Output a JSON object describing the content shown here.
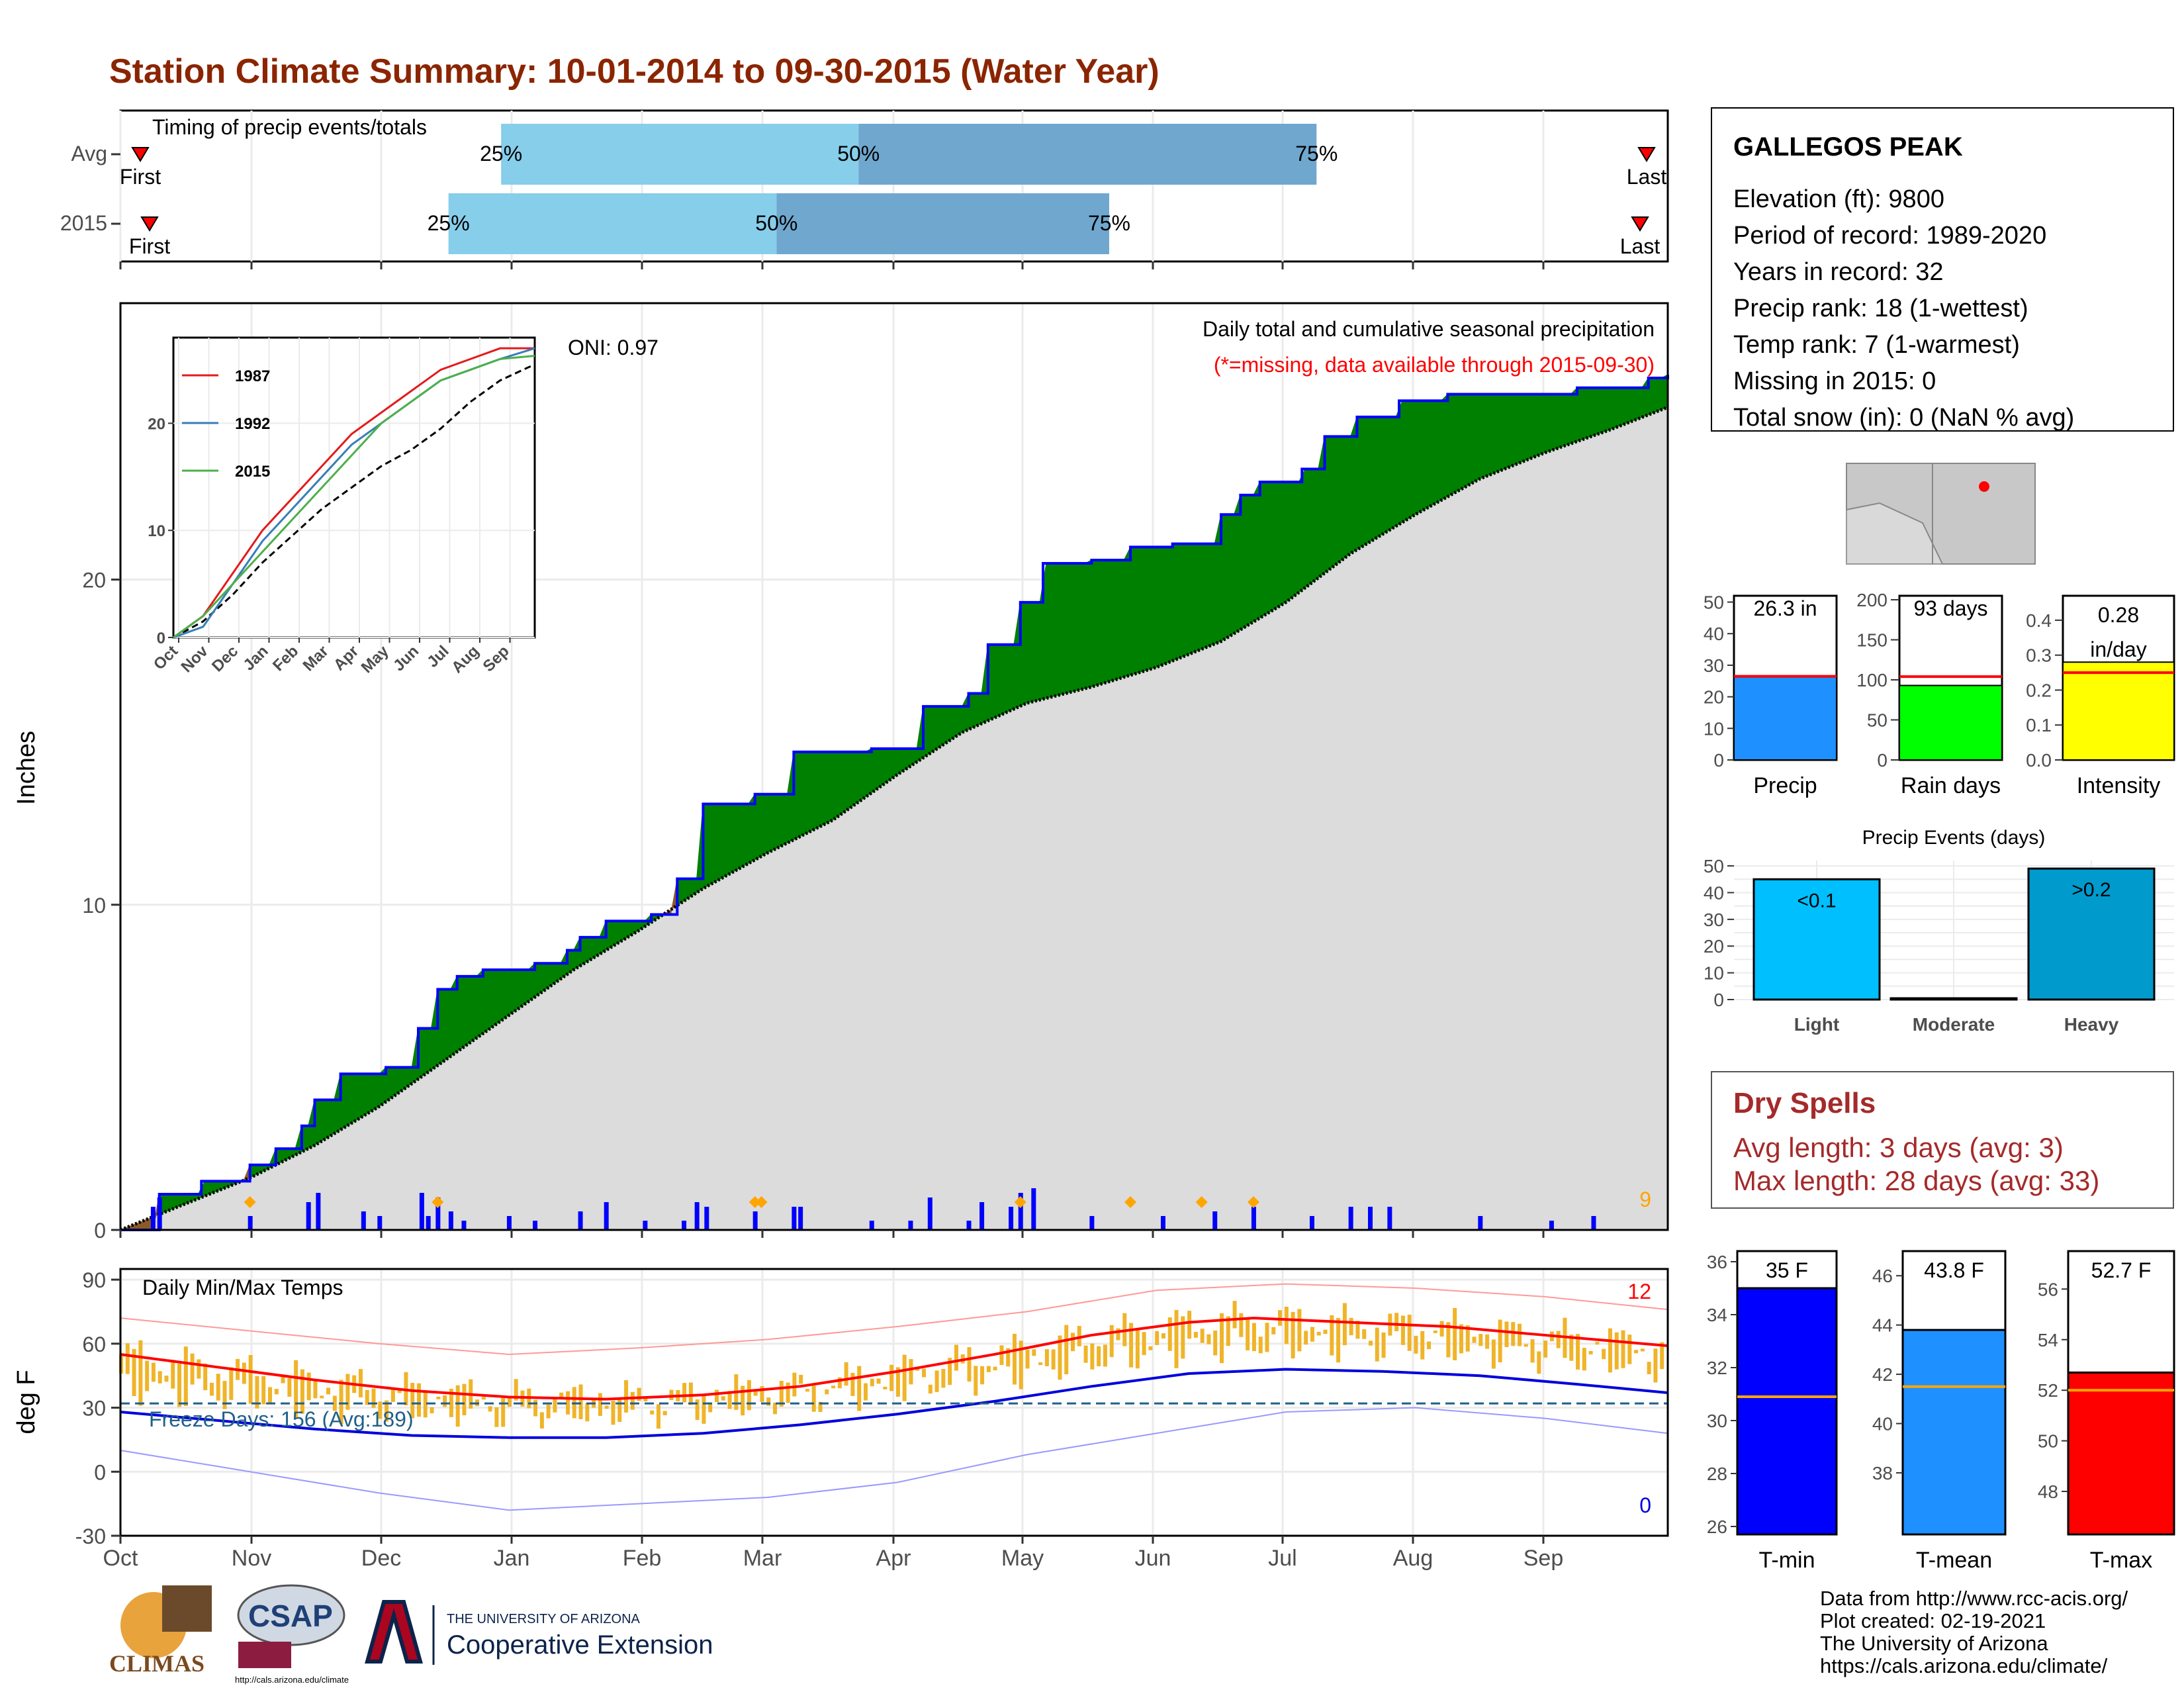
{
  "title": "Station Climate Summary: 10-01-2014 to 09-30-2015 (Water Year)",
  "timing": {
    "title": "Timing of precip events/totals",
    "rows": [
      {
        "label": "Avg",
        "p25": 0.246,
        "p50": 0.477,
        "p75": 0.773,
        "first_label": "First",
        "last_label": "Last"
      },
      {
        "label": "2015",
        "p25": 0.212,
        "p50": 0.424,
        "p75": 0.639,
        "first_label": "First",
        "last_label": "Last"
      }
    ],
    "pct_labels": [
      "25%",
      "50%",
      "75%"
    ]
  },
  "precip": {
    "ylabel": "Inches",
    "title": "Daily total and cumulative seasonal precipitation",
    "subtitle": "(*=missing, data available through 2015-09-30)",
    "oni": "ONI: 0.97",
    "ymax_label": "9",
    "y_ticks": [
      "0",
      "10",
      "20"
    ],
    "y_tick_values": [
      0,
      10,
      20
    ],
    "ylim": [
      0,
      28.5
    ],
    "cumulative_2015": [
      [
        0,
        0
      ],
      [
        12,
        1.1
      ],
      [
        25,
        1.5
      ],
      [
        40,
        2.0
      ],
      [
        48,
        2.5
      ],
      [
        56,
        3.2
      ],
      [
        60,
        4.0
      ],
      [
        68,
        4.8
      ],
      [
        82,
        5.0
      ],
      [
        92,
        6.2
      ],
      [
        98,
        7.4
      ],
      [
        104,
        7.8
      ],
      [
        112,
        8.0
      ],
      [
        128,
        8.2
      ],
      [
        138,
        8.6
      ],
      [
        142,
        9.0
      ],
      [
        150,
        9.5
      ],
      [
        164,
        9.7
      ],
      [
        172,
        10.8
      ],
      [
        180,
        13.1
      ],
      [
        196,
        13.4
      ],
      [
        208,
        14.7
      ],
      [
        232,
        14.8
      ],
      [
        248,
        16.1
      ],
      [
        262,
        16.5
      ],
      [
        268,
        18.0
      ],
      [
        278,
        19.3
      ],
      [
        285,
        20.5
      ],
      [
        300,
        20.6
      ],
      [
        312,
        21.0
      ],
      [
        325,
        21.1
      ],
      [
        340,
        22.0
      ],
      [
        346,
        22.6
      ],
      [
        352,
        23.0
      ],
      [
        365,
        23.4
      ],
      [
        372,
        24.4
      ],
      [
        382,
        25.0
      ],
      [
        395,
        25.5
      ],
      [
        410,
        25.7
      ],
      [
        440,
        25.7
      ],
      [
        450,
        25.9
      ],
      [
        472,
        26.2
      ],
      [
        478,
        26.3
      ]
    ],
    "cumulative_avg": [
      [
        0,
        0
      ],
      [
        20,
        0.8
      ],
      [
        40,
        1.6
      ],
      [
        60,
        2.6
      ],
      [
        80,
        3.8
      ],
      [
        100,
        5.2
      ],
      [
        120,
        6.6
      ],
      [
        140,
        8.0
      ],
      [
        160,
        9.2
      ],
      [
        180,
        10.5
      ],
      [
        200,
        11.6
      ],
      [
        220,
        12.6
      ],
      [
        240,
        14.0
      ],
      [
        260,
        15.3
      ],
      [
        280,
        16.2
      ],
      [
        300,
        16.7
      ],
      [
        320,
        17.3
      ],
      [
        340,
        18.1
      ],
      [
        360,
        19.3
      ],
      [
        380,
        20.8
      ],
      [
        400,
        22.0
      ],
      [
        420,
        23.1
      ],
      [
        440,
        23.9
      ],
      [
        460,
        24.6
      ],
      [
        478,
        25.3
      ]
    ],
    "daily_bars": [
      [
        10,
        0.5
      ],
      [
        12,
        0.7
      ],
      [
        40,
        0.3
      ],
      [
        58,
        0.6
      ],
      [
        61,
        0.8
      ],
      [
        75,
        0.4
      ],
      [
        80,
        0.3
      ],
      [
        93,
        0.8
      ],
      [
        95,
        0.3
      ],
      [
        98,
        0.7
      ],
      [
        102,
        0.4
      ],
      [
        106,
        0.2
      ],
      [
        120,
        0.3
      ],
      [
        128,
        0.2
      ],
      [
        142,
        0.4
      ],
      [
        150,
        0.6
      ],
      [
        162,
        0.2
      ],
      [
        174,
        0.2
      ],
      [
        178,
        0.6
      ],
      [
        181,
        0.5
      ],
      [
        196,
        0.4
      ],
      [
        208,
        0.5
      ],
      [
        210,
        0.5
      ],
      [
        232,
        0.2
      ],
      [
        244,
        0.2
      ],
      [
        250,
        0.7
      ],
      [
        262,
        0.2
      ],
      [
        266,
        0.6
      ],
      [
        275,
        0.5
      ],
      [
        278,
        0.8
      ],
      [
        282,
        0.9
      ],
      [
        300,
        0.3
      ],
      [
        322,
        0.3
      ],
      [
        338,
        0.4
      ],
      [
        350,
        0.5
      ],
      [
        368,
        0.3
      ],
      [
        380,
        0.5
      ],
      [
        386,
        0.5
      ],
      [
        392,
        0.5
      ],
      [
        420,
        0.3
      ],
      [
        442,
        0.2
      ],
      [
        455,
        0.3
      ]
    ],
    "missing_markers": [
      40,
      98,
      196,
      198,
      278,
      312,
      334,
      350
    ],
    "insets": {
      "series": [
        {
          "name": "1987",
          "color": "#e41a1c",
          "values": [
            [
              0,
              0
            ],
            [
              30,
              2
            ],
            [
              60,
              6
            ],
            [
              90,
              10
            ],
            [
              120,
              13
            ],
            [
              150,
              16
            ],
            [
              180,
              19
            ],
            [
              210,
              21
            ],
            [
              240,
              23
            ],
            [
              270,
              25
            ],
            [
              300,
              26
            ],
            [
              330,
              27
            ],
            [
              365,
              27
            ]
          ]
        },
        {
          "name": "1992",
          "color": "#377eb8",
          "values": [
            [
              0,
              0
            ],
            [
              30,
              1
            ],
            [
              60,
              5
            ],
            [
              90,
              9
            ],
            [
              120,
              12
            ],
            [
              150,
              15
            ],
            [
              180,
              18
            ],
            [
              210,
              20
            ],
            [
              240,
              22
            ],
            [
              270,
              24
            ],
            [
              300,
              25
            ],
            [
              330,
              26
            ],
            [
              365,
              27
            ]
          ]
        },
        {
          "name": "2015",
          "color": "#4daf4a",
          "values": [
            [
              0,
              0
            ],
            [
              30,
              2
            ],
            [
              60,
              5
            ],
            [
              90,
              8
            ],
            [
              120,
              11
            ],
            [
              150,
              14
            ],
            [
              180,
              17
            ],
            [
              210,
              20
            ],
            [
              240,
              22
            ],
            [
              270,
              24
            ],
            [
              300,
              25
            ],
            [
              330,
              26
            ],
            [
              365,
              26.3
            ]
          ]
        }
      ],
      "avg_values": [
        [
          0,
          0
        ],
        [
          30,
          1.5
        ],
        [
          60,
          4
        ],
        [
          90,
          7
        ],
        [
          120,
          9.5
        ],
        [
          150,
          12
        ],
        [
          180,
          14
        ],
        [
          210,
          16
        ],
        [
          240,
          17.5
        ],
        [
          270,
          19.5
        ],
        [
          300,
          22
        ],
        [
          330,
          24
        ],
        [
          365,
          25.5
        ]
      ],
      "y_ticks": [
        "0",
        "10",
        "20"
      ],
      "x_ticks": [
        "Oct",
        "Nov",
        "Dec",
        "Jan",
        "Feb",
        "Mar",
        "Apr",
        "May",
        "Jun",
        "Jul",
        "Aug",
        "Sep"
      ]
    }
  },
  "temp": {
    "ylabel": "deg F",
    "title": "Daily Min/Max Temps",
    "freeze_label": "Freeze Days: 156 (Avg:189)",
    "max_count_label": "12",
    "min_count_label": "0",
    "y_ticks": [
      "90",
      "60",
      "30",
      "0",
      "-30"
    ],
    "y_tick_values": [
      90,
      60,
      30,
      0,
      -30
    ],
    "ylim": [
      -30,
      95
    ],
    "avg_max": [
      [
        0,
        55
      ],
      [
        30,
        49
      ],
      [
        60,
        43
      ],
      [
        90,
        38
      ],
      [
        120,
        35
      ],
      [
        150,
        34
      ],
      [
        180,
        36
      ],
      [
        210,
        40
      ],
      [
        240,
        47
      ],
      [
        270,
        55
      ],
      [
        300,
        64
      ],
      [
        330,
        70
      ],
      [
        350,
        72
      ],
      [
        380,
        70
      ],
      [
        410,
        68
      ],
      [
        440,
        64
      ],
      [
        478,
        59
      ]
    ],
    "avg_min": [
      [
        0,
        28
      ],
      [
        30,
        24
      ],
      [
        60,
        20
      ],
      [
        90,
        17
      ],
      [
        120,
        16
      ],
      [
        150,
        16
      ],
      [
        180,
        18
      ],
      [
        210,
        22
      ],
      [
        240,
        27
      ],
      [
        270,
        33
      ],
      [
        300,
        40
      ],
      [
        330,
        46
      ],
      [
        360,
        48
      ],
      [
        390,
        47
      ],
      [
        420,
        45
      ],
      [
        450,
        41
      ],
      [
        478,
        37
      ]
    ],
    "rec_max": [
      [
        0,
        72
      ],
      [
        40,
        66
      ],
      [
        80,
        60
      ],
      [
        120,
        55
      ],
      [
        160,
        58
      ],
      [
        200,
        62
      ],
      [
        240,
        68
      ],
      [
        280,
        75
      ],
      [
        320,
        85
      ],
      [
        360,
        88
      ],
      [
        400,
        86
      ],
      [
        440,
        82
      ],
      [
        478,
        76
      ]
    ],
    "rec_min": [
      [
        0,
        10
      ],
      [
        40,
        0
      ],
      [
        80,
        -10
      ],
      [
        120,
        -18
      ],
      [
        160,
        -15
      ],
      [
        200,
        -12
      ],
      [
        240,
        -5
      ],
      [
        280,
        8
      ],
      [
        320,
        18
      ],
      [
        360,
        28
      ],
      [
        400,
        30
      ],
      [
        440,
        25
      ],
      [
        478,
        18
      ]
    ],
    "freeze_line": 32
  },
  "x_axis": {
    "months": [
      "Oct",
      "Nov",
      "Dec",
      "Jan",
      "Feb",
      "Mar",
      "Apr",
      "May",
      "Jun",
      "Jul",
      "Aug",
      "Sep"
    ],
    "month_days": [
      0,
      31,
      61,
      92,
      123,
      151,
      182,
      212,
      243,
      273,
      304,
      335
    ],
    "total_days": 365
  },
  "station": {
    "name": "GALLEGOS PEAK",
    "lines": [
      "Elevation (ft): 9800",
      "Period of record: 1989-2020",
      "Years in record: 32",
      "Precip rank: 18 (1-wettest)",
      "Temp rank: 7 (1-warmest)",
      "Missing in 2015: 0",
      "Total snow (in): 0 (NaN % avg)"
    ]
  },
  "summary_bars": [
    {
      "label": "Precip",
      "value_label": "26.3 in",
      "value": 26.3,
      "avg": 26.5,
      "ymax": 52,
      "ticks": [
        "0",
        "10",
        "20",
        "30",
        "40",
        "50"
      ],
      "tick_values": [
        0,
        10,
        20,
        30,
        40,
        50
      ],
      "color": "#1e90ff"
    },
    {
      "label": "Rain days",
      "value_label": "93 days",
      "value": 93,
      "avg": 104,
      "ymax": 205,
      "ticks": [
        "0",
        "50",
        "100",
        "150",
        "200"
      ],
      "tick_values": [
        0,
        50,
        100,
        150,
        200
      ],
      "color": "#00ff00"
    },
    {
      "label": "Intensity",
      "value_label": "0.28 in/day",
      "value": 0.28,
      "avg": 0.25,
      "ymax": 0.47,
      "ticks": [
        "0.0",
        "0.1",
        "0.2",
        "0.3",
        "0.4"
      ],
      "tick_values": [
        0,
        0.1,
        0.2,
        0.3,
        0.4
      ],
      "color": "#ffff00"
    }
  ],
  "events": {
    "title": "Precip Events (days)",
    "categories": [
      "Light",
      "Moderate",
      "Heavy"
    ],
    "value_labels": [
      "<0.1",
      "",
      ">0.2"
    ],
    "values": [
      45,
      0,
      49
    ],
    "colors": [
      "#00bfff",
      "#1e90ff",
      "#009acd"
    ],
    "ticks": [
      "0",
      "10",
      "20",
      "30",
      "40",
      "50"
    ],
    "tick_values": [
      0,
      10,
      20,
      30,
      40,
      50
    ],
    "ymax": 52
  },
  "dry_spells": {
    "title": "Dry Spells",
    "avg": "Avg length: 3 days (avg: 3)",
    "max": "Max length: 28 days (avg: 33)"
  },
  "temp_bars": [
    {
      "label": "T-min",
      "value_label": "35 F",
      "value": 35,
      "avg": 30.9,
      "ymin": 25.7,
      "ymax": 36.4,
      "ticks": [
        "26",
        "28",
        "30",
        "32",
        "34",
        "36"
      ],
      "tick_values": [
        26,
        28,
        30,
        32,
        34,
        36
      ],
      "color": "#0000ff"
    },
    {
      "label": "T-mean",
      "value_label": "43.8 F",
      "value": 43.8,
      "avg": 41.5,
      "ymin": 35.5,
      "ymax": 47.0,
      "ticks": [
        "38",
        "40",
        "42",
        "44",
        "46"
      ],
      "tick_values": [
        38,
        40,
        42,
        44,
        46
      ],
      "color": "#1e90ff"
    },
    {
      "label": "T-max",
      "value_label": "52.7 F",
      "value": 52.7,
      "avg": 52.0,
      "ymin": 46.3,
      "ymax": 57.5,
      "ticks": [
        "48",
        "50",
        "52",
        "54",
        "56"
      ],
      "tick_values": [
        48,
        50,
        52,
        54,
        56
      ],
      "color": "#ff0000"
    }
  ],
  "credits": [
    "Data from http://www.rcc-acis.org/",
    "Plot created: 02-19-2021",
    "The University of Arizona",
    "https://cals.arizona.edu/climate/"
  ],
  "logos": {
    "climas": "CLIMAS",
    "csap": "CSAP",
    "csap_url": "http://cals.arizona.edu/climate",
    "ua_small": "THE UNIVERSITY OF ARIZONA",
    "ua_big": "Cooperative Extension"
  }
}
